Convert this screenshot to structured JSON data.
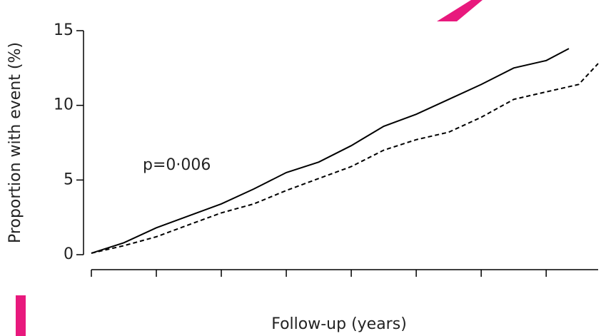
{
  "chart_data": {
    "type": "line",
    "y_label": "Proportion with event (%)",
    "x_label": "Follow-up (years)",
    "annotation": "p=0·006",
    "xlim": [
      0,
      7.8
    ],
    "xticks": [
      0,
      1,
      2,
      3,
      4,
      5,
      6,
      7
    ],
    "ylim": [
      0,
      15
    ],
    "yticks": [
      0,
      5,
      10,
      15
    ],
    "series": [
      {
        "color": "#000000",
        "dashed": false,
        "x": [
          0,
          0.5,
          1,
          1.5,
          2,
          2.5,
          3,
          3.5,
          4,
          4.5,
          5,
          5.5,
          6,
          6.5,
          7,
          7.35
        ],
        "values": [
          0.1,
          0.8,
          1.8,
          2.6,
          3.4,
          4.4,
          5.5,
          6.2,
          7.3,
          8.6,
          9.4,
          10.4,
          11.4,
          12.5,
          13.0,
          13.8
        ]
      },
      {
        "color": "#000000",
        "dashed": true,
        "x": [
          0,
          0.5,
          1,
          1.5,
          2,
          2.5,
          3,
          3.5,
          4,
          4.5,
          5,
          5.5,
          6,
          6.5,
          7,
          7.5,
          7.8
        ],
        "values": [
          0.1,
          0.6,
          1.2,
          2.0,
          2.8,
          3.4,
          4.3,
          5.1,
          5.9,
          7.0,
          7.7,
          8.2,
          9.2,
          10.4,
          10.9,
          11.4,
          12.8
        ]
      }
    ]
  }
}
